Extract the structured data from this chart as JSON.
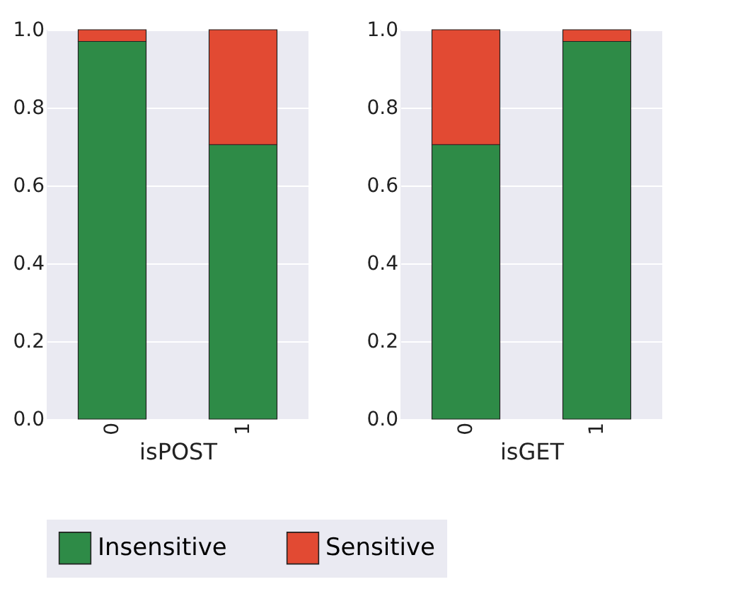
{
  "chart_data": [
    {
      "type": "bar",
      "stacked": true,
      "categories": [
        "0",
        "1"
      ],
      "xlabel": "isPOST",
      "ylim": [
        0,
        1.0
      ],
      "yticks": [
        {
          "value": 0,
          "label": "0.0"
        },
        {
          "value": 0.2,
          "label": "0.2"
        },
        {
          "value": 0.4,
          "label": "0.4"
        },
        {
          "value": 0.6,
          "label": "0.6"
        },
        {
          "value": 0.8,
          "label": "0.8"
        },
        {
          "value": 1.0,
          "label": "1.0"
        }
      ],
      "grid": "y",
      "legend": "bottom",
      "series": [
        {
          "name": "Insensitive",
          "color": "#2e8b47",
          "values": [
            0.97,
            0.705
          ]
        },
        {
          "name": "Sensitive",
          "color": "#e24a33",
          "values": [
            0.03,
            0.295
          ]
        }
      ]
    },
    {
      "type": "bar",
      "stacked": true,
      "categories": [
        "0",
        "1"
      ],
      "xlabel": "isGET",
      "ylim": [
        0,
        1.0
      ],
      "yticks": [
        {
          "value": 0,
          "label": "0.0"
        },
        {
          "value": 0.2,
          "label": "0.2"
        },
        {
          "value": 0.4,
          "label": "0.4"
        },
        {
          "value": 0.6,
          "label": "0.6"
        },
        {
          "value": 0.8,
          "label": "0.8"
        },
        {
          "value": 1.0,
          "label": "1.0"
        }
      ],
      "grid": "y",
      "legend": "bottom",
      "series": [
        {
          "name": "Insensitive",
          "color": "#2e8b47",
          "values": [
            0.705,
            0.97
          ]
        },
        {
          "name": "Sensitive",
          "color": "#e24a33",
          "values": [
            0.295,
            0.03
          ]
        }
      ]
    }
  ]
}
